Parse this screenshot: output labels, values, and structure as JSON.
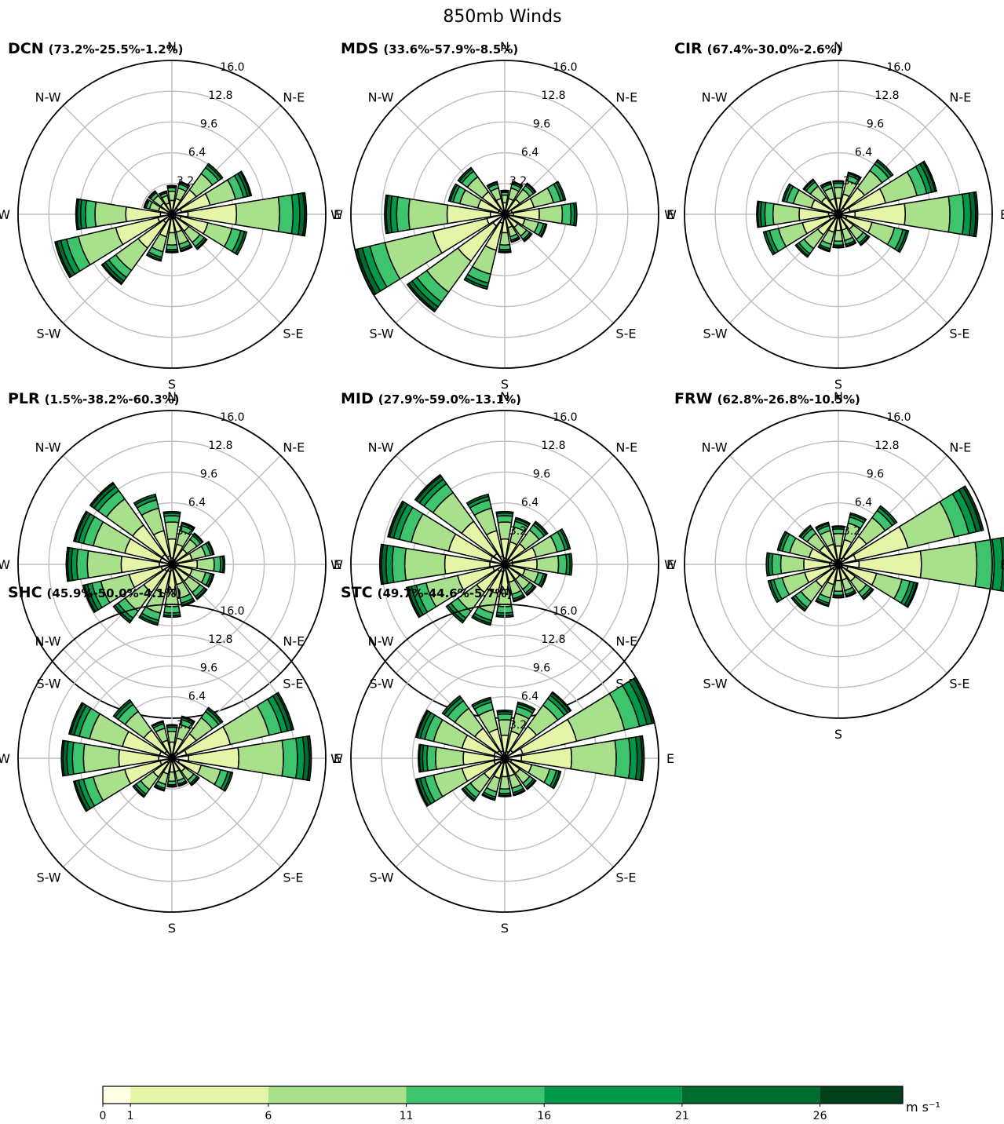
{
  "figure": {
    "title": "850mb Winds",
    "colorbar": {
      "boundaries": [
        0,
        1,
        6,
        11,
        16,
        21,
        26,
        29
      ],
      "tick_labels": [
        "0",
        "1",
        "6",
        "11",
        "16",
        "21",
        "26"
      ],
      "unit_label": "m s⁻¹",
      "colors": [
        "#ffffe5",
        "#e5f5a8",
        "#a8e08c",
        "#3ec46d",
        "#00994a",
        "#006c2f",
        "#00401b"
      ]
    }
  },
  "chart_data": [
    {
      "type": "windrose",
      "name": "DCN",
      "subtitle": "(73.2%-25.5%-1.2%)",
      "rmax": 16.0,
      "ring_labels": [
        "3.2",
        "6.4",
        "9.6",
        "12.8",
        "16.0"
      ],
      "directions": [
        "N",
        "N-E",
        "E",
        "S-E",
        "S",
        "S-W",
        "W",
        "N-W"
      ],
      "sector_directions_deg": [
        0,
        22.5,
        45,
        67.5,
        90,
        112.5,
        135,
        157.5,
        180,
        202.5,
        225,
        247.5,
        270,
        292.5,
        315,
        337.5
      ],
      "speed_bins": [
        "0-1",
        "1-6",
        "6-11",
        "11-16",
        "16-21",
        "21-26",
        ">26"
      ],
      "totals": [
        3.0,
        3.5,
        6.5,
        8.5,
        14.0,
        8.0,
        4.5,
        4.0,
        4.0,
        5.0,
        9.0,
        12.5,
        10.0,
        3.0,
        3.0,
        2.5
      ]
    },
    {
      "type": "windrose",
      "name": "MDS",
      "subtitle": "(33.6%-57.9%-8.5%)",
      "rmax": 16.0,
      "ring_labels": [
        "3.2",
        "6.4",
        "9.6",
        "12.8",
        "16.0"
      ],
      "directions": [
        "N",
        "N-E",
        "E",
        "S-E",
        "S",
        "S-W",
        "W",
        "N-W"
      ],
      "sector_directions_deg": [
        0,
        22.5,
        45,
        67.5,
        90,
        112.5,
        135,
        157.5,
        180,
        202.5,
        225,
        247.5,
        270,
        292.5,
        315,
        337.5
      ],
      "speed_bins": [
        "0-1",
        "1-6",
        "6-11",
        "11-16",
        "16-21",
        "21-26",
        ">26"
      ],
      "totals": [
        2.5,
        3.5,
        4.0,
        6.5,
        7.5,
        4.5,
        3.5,
        3.0,
        4.0,
        8.0,
        12.5,
        16.0,
        12.5,
        6.0,
        6.0,
        3.5
      ]
    },
    {
      "type": "windrose",
      "name": "CIR",
      "subtitle": "(67.4%-30.0%-2.6%)",
      "rmax": 16.0,
      "ring_labels": [
        "3.2",
        "6.4",
        "9.6",
        "12.8",
        "16.0"
      ],
      "directions": [
        "N",
        "N-E",
        "E",
        "S-E",
        "S",
        "S-W",
        "W",
        "N-W"
      ],
      "sector_directions_deg": [
        0,
        22.5,
        45,
        67.5,
        90,
        112.5,
        135,
        157.5,
        180,
        202.5,
        225,
        247.5,
        270,
        292.5,
        315,
        337.5
      ],
      "speed_bins": [
        "0-1",
        "1-6",
        "6-11",
        "11-16",
        "16-21",
        "21-26",
        ">26"
      ],
      "totals": [
        3.5,
        4.5,
        7.0,
        10.5,
        14.5,
        7.5,
        4.0,
        3.5,
        3.5,
        4.0,
        5.5,
        8.0,
        8.5,
        6.0,
        4.5,
        3.5
      ]
    },
    {
      "type": "windrose",
      "name": "PLR",
      "subtitle": "(1.5%-38.2%-60.3%)",
      "rmax": 16.0,
      "ring_labels": [
        "3.2",
        "6.4",
        "9.6",
        "12.8",
        "16.0"
      ],
      "directions": [
        "N",
        "N-E",
        "E",
        "S-E",
        "S",
        "S-W",
        "W",
        "N-W"
      ],
      "sector_directions_deg": [
        0,
        22.5,
        45,
        67.5,
        90,
        112.5,
        135,
        157.5,
        180,
        202.5,
        225,
        247.5,
        270,
        292.5,
        315,
        337.5
      ],
      "speed_bins": [
        "0-1",
        "1-6",
        "6-11",
        "11-16",
        "16-21",
        "21-26",
        ">26"
      ],
      "totals": [
        5.5,
        4.5,
        4.0,
        4.5,
        5.5,
        4.5,
        4.5,
        4.5,
        5.5,
        6.5,
        7.5,
        9.5,
        11.0,
        10.5,
        10.5,
        7.5
      ]
    },
    {
      "type": "windrose",
      "name": "MID",
      "subtitle": "(27.9%-59.0%-13.1%)",
      "rmax": 16.0,
      "ring_labels": [
        "3.2",
        "6.4",
        "9.6",
        "12.8",
        "16.0"
      ],
      "directions": [
        "N",
        "N-E",
        "E",
        "S-E",
        "S",
        "S-W",
        "W",
        "N-W"
      ],
      "sector_directions_deg": [
        0,
        22.5,
        45,
        67.5,
        90,
        112.5,
        135,
        157.5,
        180,
        202.5,
        225,
        247.5,
        270,
        292.5,
        315,
        337.5
      ],
      "speed_bins": [
        "0-1",
        "1-6",
        "6-11",
        "11-16",
        "16-21",
        "21-26",
        ">26"
      ],
      "totals": [
        5.5,
        5.0,
        5.5,
        7.0,
        7.0,
        4.5,
        4.0,
        4.0,
        5.5,
        6.5,
        7.5,
        10.5,
        13.0,
        12.5,
        11.5,
        7.5
      ]
    },
    {
      "type": "windrose",
      "name": "FRW",
      "subtitle": "(62.8%-26.8%-10.5%)",
      "rmax": 16.0,
      "ring_labels": [
        "3.2",
        "6.4",
        "9.6",
        "12.8",
        "16.0"
      ],
      "directions": [
        "N",
        "N-E",
        "E",
        "S-E",
        "S",
        "S-W",
        "W",
        "N-W"
      ],
      "sector_directions_deg": [
        0,
        22.5,
        45,
        67.5,
        90,
        112.5,
        135,
        157.5,
        180,
        202.5,
        225,
        247.5,
        270,
        292.5,
        315,
        337.5
      ],
      "speed_bins": [
        "0-1",
        "1-6",
        "6-11",
        "11-16",
        "16-21",
        "21-26",
        ">26"
      ],
      "totals": [
        4.0,
        5.5,
        7.5,
        15.5,
        18.0,
        8.5,
        4.5,
        3.5,
        3.5,
        4.5,
        6.0,
        7.5,
        7.5,
        6.5,
        5.0,
        4.5
      ]
    },
    {
      "type": "windrose",
      "name": "SHC",
      "subtitle": "(45.9%-50.0%-4.1%)",
      "rmax": 16.0,
      "ring_labels": [
        "3.2",
        "6.4",
        "9.6",
        "12.8",
        "16.0"
      ],
      "directions": [
        "N",
        "N-E",
        "E",
        "S-E",
        "S",
        "S-W",
        "W",
        "N-W"
      ],
      "sector_directions_deg": [
        0,
        22.5,
        45,
        67.5,
        90,
        112.5,
        135,
        157.5,
        180,
        202.5,
        225,
        247.5,
        270,
        292.5,
        315,
        337.5
      ],
      "speed_bins": [
        "0-1",
        "1-6",
        "6-11",
        "11-16",
        "16-21",
        "21-26",
        ">26"
      ],
      "totals": [
        3.5,
        4.5,
        6.5,
        13.0,
        14.5,
        6.5,
        3.5,
        3.0,
        3.0,
        3.5,
        5.0,
        10.5,
        11.5,
        11.0,
        7.5,
        4.0
      ]
    },
    {
      "type": "windrose",
      "name": "STC",
      "subtitle": "(49.7%-44.6%-5.7%)",
      "rmax": 16.0,
      "ring_labels": [
        "3.2",
        "6.4",
        "9.6",
        "12.8",
        "16.0"
      ],
      "directions": [
        "N",
        "N-E",
        "E",
        "S-E",
        "S",
        "S-W",
        "W",
        "N-W"
      ],
      "sector_directions_deg": [
        0,
        22.5,
        45,
        67.5,
        90,
        112.5,
        135,
        157.5,
        180,
        202.5,
        225,
        247.5,
        270,
        292.5,
        315,
        337.5
      ],
      "speed_bins": [
        "0-1",
        "1-6",
        "6-11",
        "11-16",
        "16-21",
        "21-26",
        ">26"
      ],
      "totals": [
        5.0,
        6.0,
        8.5,
        16.0,
        14.5,
        6.0,
        4.0,
        4.0,
        4.0,
        4.5,
        5.5,
        9.5,
        9.0,
        9.5,
        8.0,
        6.5
      ]
    }
  ]
}
